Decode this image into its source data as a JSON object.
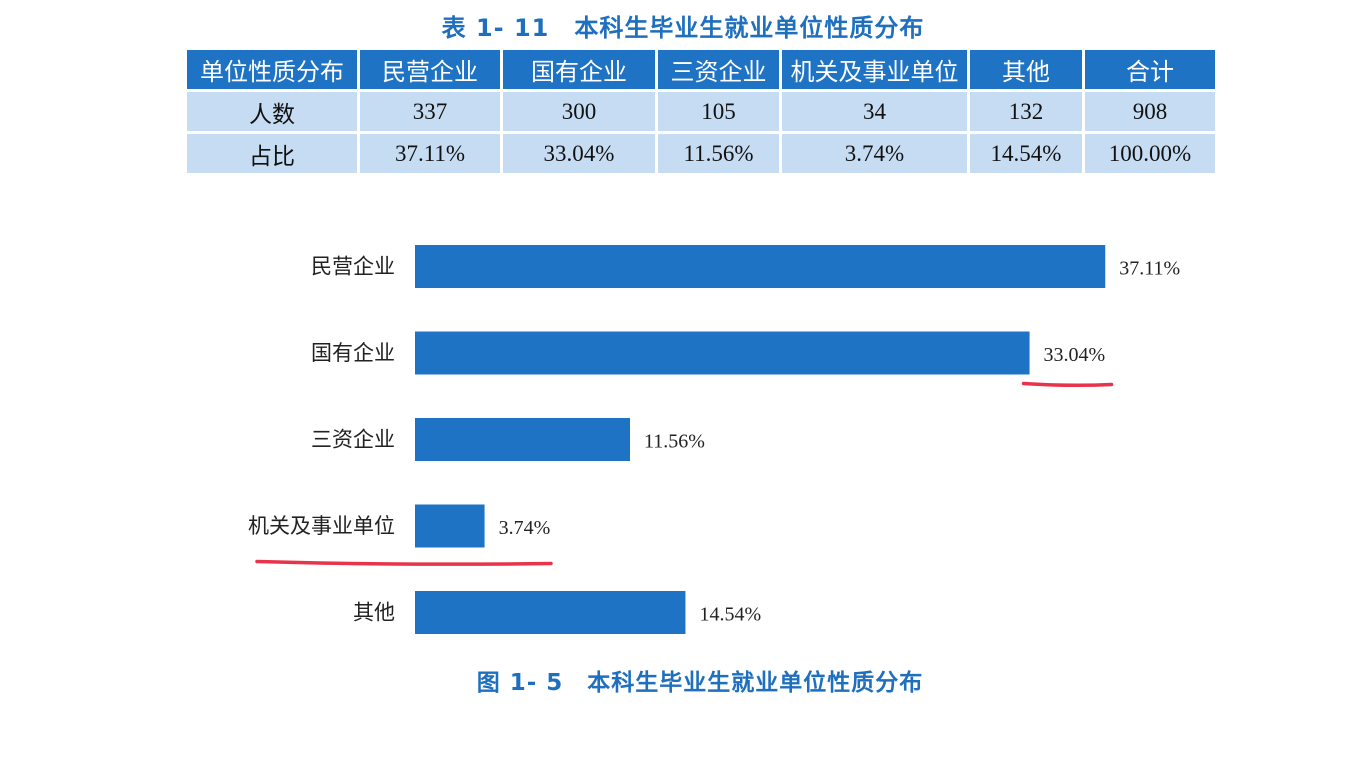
{
  "table": {
    "title": "表 1- 11　本科生毕业生就业单位性质分布",
    "headers": [
      "单位性质分布",
      "民营企业",
      "国有企业",
      "三资企业",
      "机关及事业单位",
      "其他",
      "合计"
    ],
    "rows": [
      [
        "人数",
        "337",
        "300",
        "105",
        "34",
        "132",
        "908"
      ],
      [
        "占比",
        "37.11%",
        "33.04%",
        "11.56%",
        "3.74%",
        "14.54%",
        "100.00%"
      ]
    ]
  },
  "figure": {
    "title": "图 1- 5　本科生毕业生就业单位性质分布"
  },
  "chart_data": {
    "type": "bar",
    "orientation": "horizontal",
    "categories": [
      "民营企业",
      "国有企业",
      "三资企业",
      "机关及事业单位",
      "其他"
    ],
    "values": [
      37.11,
      33.04,
      11.56,
      3.74,
      14.54
    ],
    "value_labels": [
      "37.11%",
      "33.04%",
      "11.56%",
      "3.74%",
      "14.54%"
    ],
    "bar_color": "#1f73c4",
    "grid": false,
    "legend": "none",
    "annotations": [
      {
        "type": "red-underline",
        "target": "33.04%"
      },
      {
        "type": "red-underline",
        "target": "机关及事业单位"
      }
    ],
    "annotation_color": "#e8334a"
  }
}
